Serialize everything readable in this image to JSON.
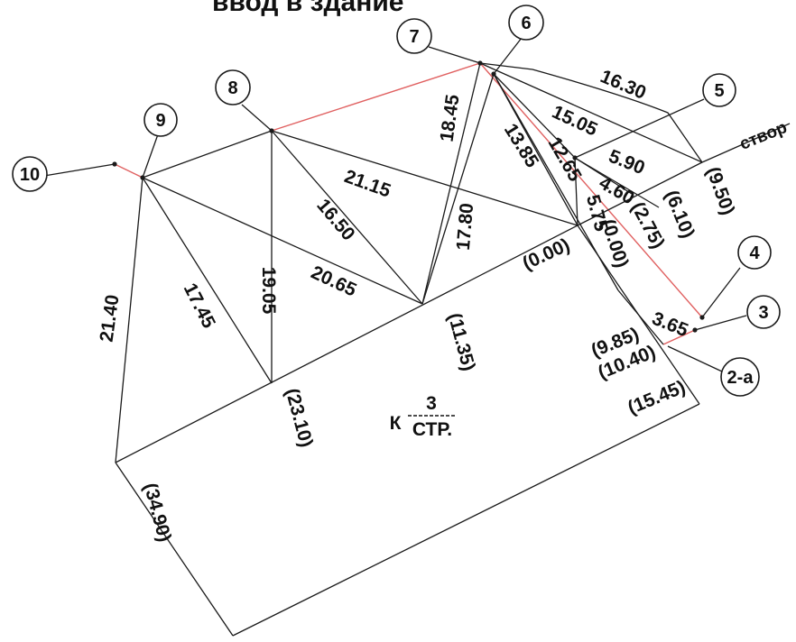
{
  "title": "ввод в здание",
  "node_labels": {
    "n10": "10",
    "n9": "9",
    "n8": "8",
    "n7": "7",
    "n6": "6",
    "n5": "5",
    "n4": "4",
    "n3": "3",
    "n2a": "2-а"
  },
  "measurements": {
    "m2140": "21.40",
    "m1745": "17.45",
    "m1905": "19.05",
    "m2065": "20.65",
    "m1650": "16.50",
    "m2115": "21.15",
    "m1845": "18.45",
    "m1780": "17.80",
    "m1385": "13.85",
    "m1265": "12.65",
    "m1505": "15.05",
    "m1630": "16.30",
    "m590": "5.90",
    "m460": "4.60",
    "m575": "5.75",
    "m365": "3.65"
  },
  "chainage": {
    "c3490": "(34.90)",
    "c2310": "(23.10)",
    "c1135": "(11.35)",
    "c000a": "(0.00)",
    "c000b": "(0.00)",
    "c275": "(2.75)",
    "c610": "(6.10)",
    "c950": "(9.50)",
    "c985": "(9.85)",
    "c1040": "(10.40)",
    "c1545": "(15.45)"
  },
  "stvor_label": "створ",
  "reference": {
    "prefix": "К",
    "numerator": "3",
    "denominator": "СТР."
  }
}
